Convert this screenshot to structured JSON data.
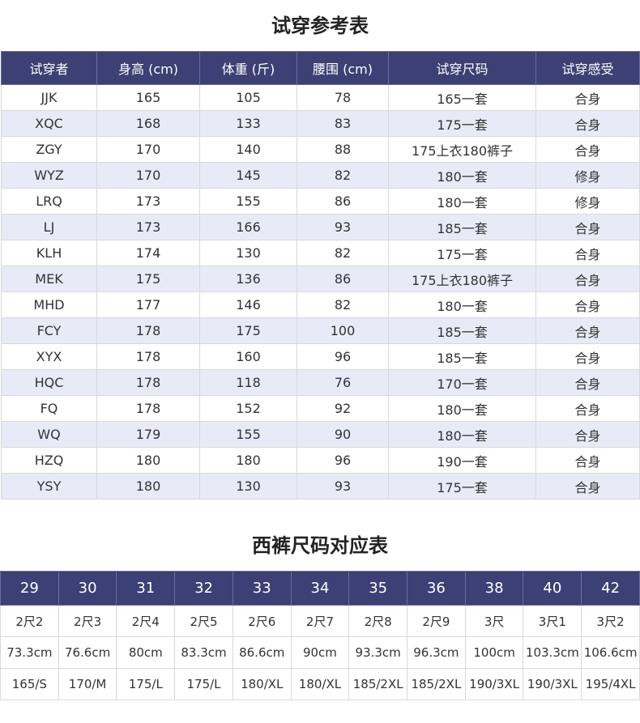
{
  "tryon_table": {
    "title": "试穿参考表",
    "headers": [
      "试穿者",
      "身高 (cm)",
      "体重 (斤)",
      "腰围 (cm)",
      "试穿尺码",
      "试穿感受"
    ],
    "rows": [
      [
        "JJK",
        "165",
        "105",
        "78",
        "165一套",
        "合身"
      ],
      [
        "XQC",
        "168",
        "133",
        "83",
        "175一套",
        "合身"
      ],
      [
        "ZGY",
        "170",
        "140",
        "88",
        "175上衣180裤子",
        "合身"
      ],
      [
        "WYZ",
        "170",
        "145",
        "82",
        "180一套",
        "修身"
      ],
      [
        "LRQ",
        "173",
        "155",
        "86",
        "180一套",
        "修身"
      ],
      [
        "LJ",
        "173",
        "166",
        "93",
        "185一套",
        "合身"
      ],
      [
        "KLH",
        "174",
        "130",
        "82",
        "175一套",
        "合身"
      ],
      [
        "MEK",
        "175",
        "136",
        "86",
        "175上衣180裤子",
        "合身"
      ],
      [
        "MHD",
        "177",
        "146",
        "82",
        "180一套",
        "合身"
      ],
      [
        "FCY",
        "178",
        "175",
        "100",
        "185一套",
        "合身"
      ],
      [
        "XYX",
        "178",
        "160",
        "96",
        "185一套",
        "合身"
      ],
      [
        "HQC",
        "178",
        "118",
        "76",
        "170一套",
        "合身"
      ],
      [
        "FQ",
        "178",
        "152",
        "92",
        "180一套",
        "合身"
      ],
      [
        "WQ",
        "179",
        "155",
        "90",
        "180一套",
        "合身"
      ],
      [
        "HZQ",
        "180",
        "180",
        "96",
        "190一套",
        "合身"
      ],
      [
        "YSY",
        "180",
        "130",
        "93",
        "175一套",
        "合身"
      ]
    ]
  },
  "size_table": {
    "title": "西裤尺码对应表",
    "headers": [
      "29",
      "30",
      "31",
      "32",
      "33",
      "34",
      "35",
      "36",
      "38",
      "40",
      "42"
    ],
    "rows": [
      [
        "2尺2",
        "2尺3",
        "2尺4",
        "2尺5",
        "2尺6",
        "2尺7",
        "2尺8",
        "2尺9",
        "3尺",
        "3尺1",
        "3尺2"
      ],
      [
        "73.3cm",
        "76.6cm",
        "80cm",
        "83.3cm",
        "86.6cm",
        "90cm",
        "93.3cm",
        "96.3cm",
        "100cm",
        "103.3cm",
        "106.6cm"
      ],
      [
        "165/S",
        "170/M",
        "175/L",
        "175/L",
        "180/XL",
        "180/XL",
        "185/2XL",
        "185/2XL",
        "190/3XL",
        "190/3XL",
        "195/4XL"
      ]
    ]
  },
  "colors": {
    "header_bg": "#3c4074",
    "stripe_bg": "#e8eaf7",
    "border": "#d9d9d9"
  }
}
